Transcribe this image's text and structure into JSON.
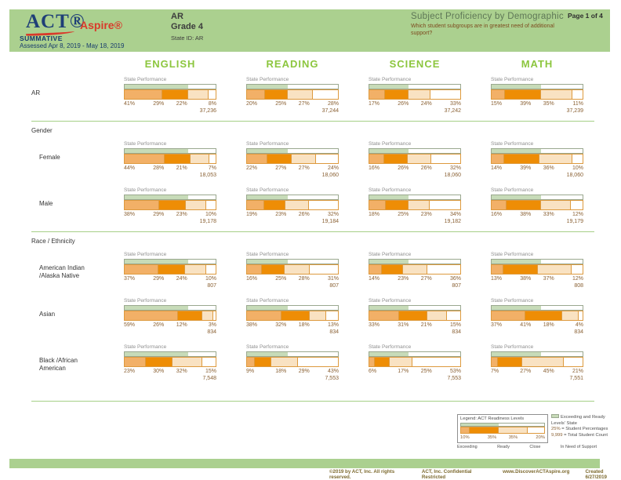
{
  "header": {
    "logo_act": "ACT®",
    "logo_aspire": "Aspire®",
    "program": "SUMMATIVE",
    "assessed": "Assessed Apr 8, 2019 - May 18, 2019",
    "org_line1": "AR",
    "org_line2": "Grade 4",
    "org_line3": "State ID: AR",
    "title": "Subject Proficiency by Demographic",
    "subtitle": "Which student subgroups are in greatest need of additional support?",
    "page_num": "Page 1 of 4"
  },
  "subjects": [
    "ENGLISH",
    "READING",
    "SCIENCE",
    "MATH"
  ],
  "chart_data": {
    "type": "bar",
    "orientation": "horizontal-stacked",
    "state_performance_label": "State Performance",
    "levels": [
      "Exceeding",
      "Ready",
      "Close",
      "In Need of Support"
    ],
    "level_colors": [
      "#f2b067",
      "#ee8d05",
      "#f9e2c2",
      "#ffffff"
    ],
    "state_band_color": "#c7dbb8",
    "state_performance_pct": [
      70,
      45,
      43,
      54
    ],
    "sections": [
      {
        "heading": "",
        "rows": [
          {
            "label": "AR",
            "cells": [
              {
                "values": [
                  41,
                  29,
                  22,
                  8
                ],
                "total": "37,236"
              },
              {
                "values": [
                  20,
                  25,
                  27,
                  28
                ],
                "total": "37,244"
              },
              {
                "values": [
                  17,
                  26,
                  24,
                  33
                ],
                "total": "37,242"
              },
              {
                "values": [
                  15,
                  39,
                  35,
                  11
                ],
                "total": "37,239"
              }
            ]
          }
        ]
      },
      {
        "heading": "Gender",
        "rows": [
          {
            "label": "Female",
            "cells": [
              {
                "values": [
                  44,
                  28,
                  21,
                  7
                ],
                "total": "18,053"
              },
              {
                "values": [
                  22,
                  27,
                  27,
                  24
                ],
                "total": "18,060"
              },
              {
                "values": [
                  16,
                  26,
                  26,
                  32
                ],
                "total": "18,060"
              },
              {
                "values": [
                  14,
                  39,
                  36,
                  10
                ],
                "total": "18,060"
              }
            ]
          },
          {
            "label": "Male",
            "cells": [
              {
                "values": [
                  38,
                  29,
                  23,
                  10
                ],
                "total": "19,178"
              },
              {
                "values": [
                  19,
                  23,
                  26,
                  32
                ],
                "total": "19,184"
              },
              {
                "values": [
                  18,
                  25,
                  23,
                  34
                ],
                "total": "19,182"
              },
              {
                "values": [
                  16,
                  38,
                  33,
                  12
                ],
                "total": "19,179"
              }
            ]
          }
        ]
      },
      {
        "heading": "Race / Ethnicity",
        "rows": [
          {
            "label": "American Indian\n/Alaska Native",
            "cells": [
              {
                "values": [
                  37,
                  29,
                  24,
                  10
                ],
                "total": "807"
              },
              {
                "values": [
                  16,
                  25,
                  28,
                  31
                ],
                "total": "807"
              },
              {
                "values": [
                  14,
                  23,
                  27,
                  36
                ],
                "total": "807"
              },
              {
                "values": [
                  13,
                  38,
                  37,
                  12
                ],
                "total": "808"
              }
            ]
          },
          {
            "label": "Asian",
            "cells": [
              {
                "values": [
                  59,
                  26,
                  12,
                  3
                ],
                "total": "834"
              },
              {
                "values": [
                  38,
                  32,
                  18,
                  13
                ],
                "total": "834"
              },
              {
                "values": [
                  33,
                  31,
                  21,
                  15
                ],
                "total": "834"
              },
              {
                "values": [
                  37,
                  41,
                  18,
                  4
                ],
                "total": "834"
              }
            ]
          },
          {
            "label": "Black /African\nAmerican",
            "cells": [
              {
                "values": [
                  23,
                  30,
                  32,
                  15
                ],
                "total": "7,548"
              },
              {
                "values": [
                  9,
                  18,
                  29,
                  43
                ],
                "total": "7,553"
              },
              {
                "values": [
                  6,
                  17,
                  25,
                  53
                ],
                "total": "7,553"
              },
              {
                "values": [
                  7,
                  27,
                  45,
                  21
                ],
                "total": "7,551"
              }
            ]
          }
        ]
      }
    ]
  },
  "legend": {
    "title": "Legend: ACT Readiness Levels",
    "sample_values": [
      10,
      35,
      35,
      20
    ],
    "sample_state_pct": 45,
    "levels": [
      "Exceeding",
      "Ready",
      "Close",
      "In Need of Support"
    ],
    "state_note": "Exceeding and Ready Levels' State",
    "pct_key": "25%",
    "pct_key_desc": "= Student Percentages",
    "count_key": "9,999",
    "count_key_desc": "= Total Student Count"
  },
  "footer": {
    "copyright": "©2019 by ACT, Inc. All rights reserved.",
    "confidential": "ACT, Inc. Confidential Restricted",
    "url": "www.DiscoverACTAspire.org",
    "created": "Created 6/27/2019"
  }
}
